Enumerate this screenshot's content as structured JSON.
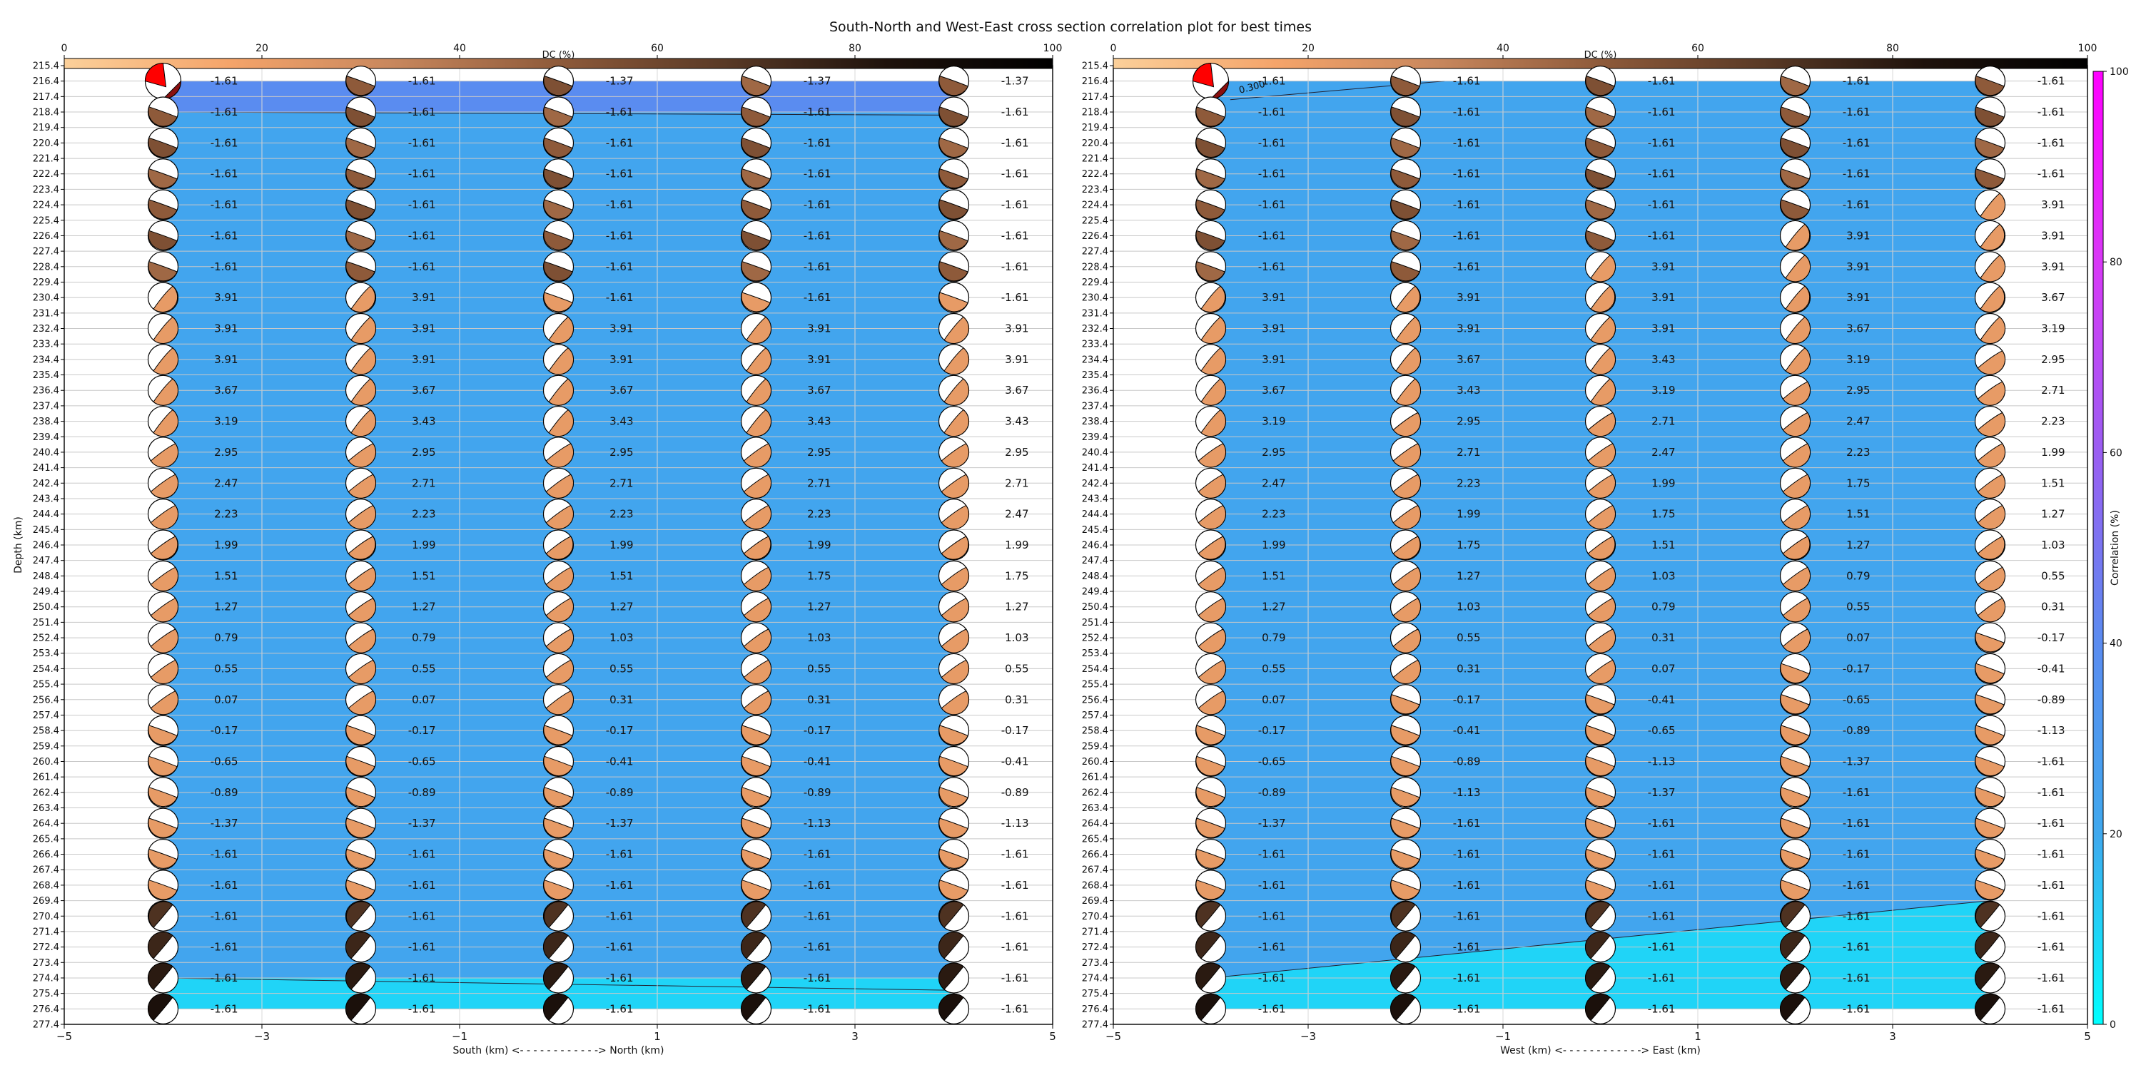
{
  "figure": {
    "title": "South-North and West-East cross section correlation plot for best times"
  },
  "colors": {
    "dc_colormap": [
      "#fbd09a",
      "#f5a46a",
      "#c8875d",
      "#8e5a3a",
      "#5a3a26",
      "#1e120c",
      "#000000"
    ],
    "corr_colormap": [
      "#00ffff",
      "#3fa8ee",
      "#5a8cf0",
      "#9a5ef2",
      "#d838f6",
      "#ff00ff"
    ],
    "compressional_highlight": "#ff0000",
    "background": "#ffffff"
  },
  "chart_data": [
    {
      "type": "heatmap",
      "panel": "south-north",
      "xlabel": "South (km) <- - - - - - - - - - - -> North (km)",
      "ylabel": "Depth (km)",
      "xlim": [
        -5,
        5
      ],
      "ylim": [
        277.4,
        215.4
      ],
      "xticks": [
        -5,
        -3,
        -1,
        1,
        3,
        5
      ],
      "yticks": [
        215.4,
        216.4,
        217.4,
        218.4,
        219.4,
        220.4,
        221.4,
        222.4,
        223.4,
        224.4,
        225.4,
        226.4,
        227.4,
        228.4,
        229.4,
        230.4,
        231.4,
        232.4,
        233.4,
        234.4,
        235.4,
        236.4,
        237.4,
        238.4,
        239.4,
        240.4,
        241.4,
        242.4,
        243.4,
        244.4,
        245.4,
        246.4,
        247.4,
        248.4,
        249.4,
        250.4,
        251.4,
        252.4,
        253.4,
        254.4,
        255.4,
        256.4,
        257.4,
        258.4,
        259.4,
        260.4,
        261.4,
        262.4,
        263.4,
        264.4,
        265.4,
        266.4,
        267.4,
        268.4,
        269.4,
        270.4,
        271.4,
        272.4,
        273.4,
        274.4,
        275.4,
        276.4,
        277.4
      ],
      "grid": true,
      "x": [
        -4,
        -2,
        0,
        2,
        4
      ],
      "depths": [
        216.4,
        218.4,
        220.4,
        222.4,
        224.4,
        226.4,
        228.4,
        230.4,
        232.4,
        234.4,
        236.4,
        238.4,
        240.4,
        242.4,
        244.4,
        246.4,
        248.4,
        250.4,
        252.4,
        254.4,
        256.4,
        258.4,
        260.4,
        262.4,
        264.4,
        266.4,
        268.4,
        270.4,
        272.4,
        274.4,
        276.4
      ],
      "values": [
        [
          "-1.61",
          "-1.61",
          "-1.37",
          "-1.37",
          "-1.37"
        ],
        [
          "-1.61",
          "-1.61",
          "-1.61",
          "-1.61",
          "-1.61"
        ],
        [
          "-1.61",
          "-1.61",
          "-1.61",
          "-1.61",
          "-1.61"
        ],
        [
          "-1.61",
          "-1.61",
          "-1.61",
          "-1.61",
          "-1.61"
        ],
        [
          "-1.61",
          "-1.61",
          "-1.61",
          "-1.61",
          "-1.61"
        ],
        [
          "-1.61",
          "-1.61",
          "-1.61",
          "-1.61",
          "-1.61"
        ],
        [
          "-1.61",
          "-1.61",
          "-1.61",
          "-1.61",
          "-1.61"
        ],
        [
          "3.91",
          "3.91",
          "-1.61",
          "-1.61",
          "-1.61"
        ],
        [
          "3.91",
          "3.91",
          "3.91",
          "3.91",
          "3.91"
        ],
        [
          "3.91",
          "3.91",
          "3.91",
          "3.91",
          "3.91"
        ],
        [
          "3.67",
          "3.67",
          "3.67",
          "3.67",
          "3.67"
        ],
        [
          "3.19",
          "3.43",
          "3.43",
          "3.43",
          "3.43"
        ],
        [
          "2.95",
          "2.95",
          "2.95",
          "2.95",
          "2.95"
        ],
        [
          "2.47",
          "2.71",
          "2.71",
          "2.71",
          "2.71"
        ],
        [
          "2.23",
          "2.23",
          "2.23",
          "2.23",
          "2.47"
        ],
        [
          "1.99",
          "1.99",
          "1.99",
          "1.99",
          "1.99"
        ],
        [
          "1.51",
          "1.51",
          "1.51",
          "1.75",
          "1.75"
        ],
        [
          "1.27",
          "1.27",
          "1.27",
          "1.27",
          "1.27"
        ],
        [
          "0.79",
          "0.79",
          "1.03",
          "1.03",
          "1.03"
        ],
        [
          "0.55",
          "0.55",
          "0.55",
          "0.55",
          "0.55"
        ],
        [
          "0.07",
          "0.07",
          "0.31",
          "0.31",
          "0.31"
        ],
        [
          "-0.17",
          "-0.17",
          "-0.17",
          "-0.17",
          "-0.17"
        ],
        [
          "-0.65",
          "-0.65",
          "-0.41",
          "-0.41",
          "-0.41"
        ],
        [
          "-0.89",
          "-0.89",
          "-0.89",
          "-0.89",
          "-0.89"
        ],
        [
          "-1.37",
          "-1.37",
          "-1.37",
          "-1.13",
          "-1.13"
        ],
        [
          "-1.61",
          "-1.61",
          "-1.61",
          "-1.61",
          "-1.61"
        ],
        [
          "-1.61",
          "-1.61",
          "-1.61",
          "-1.61",
          "-1.61"
        ],
        [
          "-1.61",
          "-1.61",
          "-1.61",
          "-1.61",
          "-1.61"
        ],
        [
          "-1.61",
          "-1.61",
          "-1.61",
          "-1.61",
          "-1.61"
        ],
        [
          "-1.61",
          "-1.61",
          "-1.61",
          "-1.61",
          "-1.61"
        ],
        [
          "-1.61",
          "-1.61",
          "-1.61",
          "-1.61",
          "-1.61"
        ]
      ],
      "dc_colorbar": {
        "label": "DC (%)",
        "ticks": [
          0,
          20,
          40,
          60,
          80,
          100
        ]
      },
      "correlation_bands": [
        {
          "depth_top": 216.4,
          "depth_bottom": 218.4,
          "correlation": 40
        },
        {
          "depth_top": 218.4,
          "depth_bottom": 274.4,
          "correlation": 22
        },
        {
          "depth_top": 274.4,
          "depth_bottom": 276.4,
          "correlation": 10
        }
      ]
    },
    {
      "type": "heatmap",
      "panel": "west-east",
      "xlabel": "West (km) <- - - - - - - - - - - -> East (km)",
      "xlim": [
        -5,
        5
      ],
      "ylim": [
        277.4,
        215.4
      ],
      "xticks": [
        -5,
        -3,
        -1,
        1,
        3,
        5
      ],
      "grid": true,
      "x": [
        -4,
        -2,
        0,
        2,
        4
      ],
      "depths": [
        216.4,
        218.4,
        220.4,
        222.4,
        224.4,
        226.4,
        228.4,
        230.4,
        232.4,
        234.4,
        236.4,
        238.4,
        240.4,
        242.4,
        244.4,
        246.4,
        248.4,
        250.4,
        252.4,
        254.4,
        256.4,
        258.4,
        260.4,
        262.4,
        264.4,
        266.4,
        268.4,
        270.4,
        272.4,
        274.4,
        276.4
      ],
      "values": [
        [
          "-1.61",
          "-1.61",
          "-1.61",
          "-1.61",
          "-1.61"
        ],
        [
          "-1.61",
          "-1.61",
          "-1.61",
          "-1.61",
          "-1.61"
        ],
        [
          "-1.61",
          "-1.61",
          "-1.61",
          "-1.61",
          "-1.61"
        ],
        [
          "-1.61",
          "-1.61",
          "-1.61",
          "-1.61",
          "-1.61"
        ],
        [
          "-1.61",
          "-1.61",
          "-1.61",
          "-1.61",
          "3.91"
        ],
        [
          "-1.61",
          "-1.61",
          "-1.61",
          "3.91",
          "3.91"
        ],
        [
          "-1.61",
          "-1.61",
          "3.91",
          "3.91",
          "3.91"
        ],
        [
          "3.91",
          "3.91",
          "3.91",
          "3.91",
          "3.67"
        ],
        [
          "3.91",
          "3.91",
          "3.91",
          "3.67",
          "3.19"
        ],
        [
          "3.91",
          "3.67",
          "3.43",
          "3.19",
          "2.95"
        ],
        [
          "3.67",
          "3.43",
          "3.19",
          "2.95",
          "2.71"
        ],
        [
          "3.19",
          "2.95",
          "2.71",
          "2.47",
          "2.23"
        ],
        [
          "2.95",
          "2.71",
          "2.47",
          "2.23",
          "1.99"
        ],
        [
          "2.47",
          "2.23",
          "1.99",
          "1.75",
          "1.51"
        ],
        [
          "2.23",
          "1.99",
          "1.75",
          "1.51",
          "1.27"
        ],
        [
          "1.99",
          "1.75",
          "1.51",
          "1.27",
          "1.03"
        ],
        [
          "1.51",
          "1.27",
          "1.03",
          "0.79",
          "0.55"
        ],
        [
          "1.27",
          "1.03",
          "0.79",
          "0.55",
          "0.31"
        ],
        [
          "0.79",
          "0.55",
          "0.31",
          "0.07",
          "-0.17"
        ],
        [
          "0.55",
          "0.31",
          "0.07",
          "-0.17",
          "-0.41"
        ],
        [
          "0.07",
          "-0.17",
          "-0.41",
          "-0.65",
          "-0.89"
        ],
        [
          "-0.17",
          "-0.41",
          "-0.65",
          "-0.89",
          "-1.13"
        ],
        [
          "-0.65",
          "-0.89",
          "-1.13",
          "-1.37",
          "-1.61"
        ],
        [
          "-0.89",
          "-1.13",
          "-1.37",
          "-1.61",
          "-1.61"
        ],
        [
          "-1.37",
          "-1.61",
          "-1.61",
          "-1.61",
          "-1.61"
        ],
        [
          "-1.61",
          "-1.61",
          "-1.61",
          "-1.61",
          "-1.61"
        ],
        [
          "-1.61",
          "-1.61",
          "-1.61",
          "-1.61",
          "-1.61"
        ],
        [
          "-1.61",
          "-1.61",
          "-1.61",
          "-1.61",
          "-1.61"
        ],
        [
          "-1.61",
          "-1.61",
          "-1.61",
          "-1.61",
          "-1.61"
        ],
        [
          "-1.61",
          "-1.61",
          "-1.61",
          "-1.61",
          "-1.61"
        ],
        [
          "-1.61",
          "-1.61",
          "-1.61",
          "-1.61",
          "-1.61"
        ]
      ],
      "annotation": "0.300",
      "dc_colorbar": {
        "label": "DC (%)",
        "ticks": [
          0,
          20,
          40,
          60,
          80,
          100
        ]
      },
      "correlation_colorbar": {
        "label": "Correlation (%)",
        "ticks": [
          0,
          20,
          40,
          60,
          80,
          100
        ]
      }
    }
  ]
}
